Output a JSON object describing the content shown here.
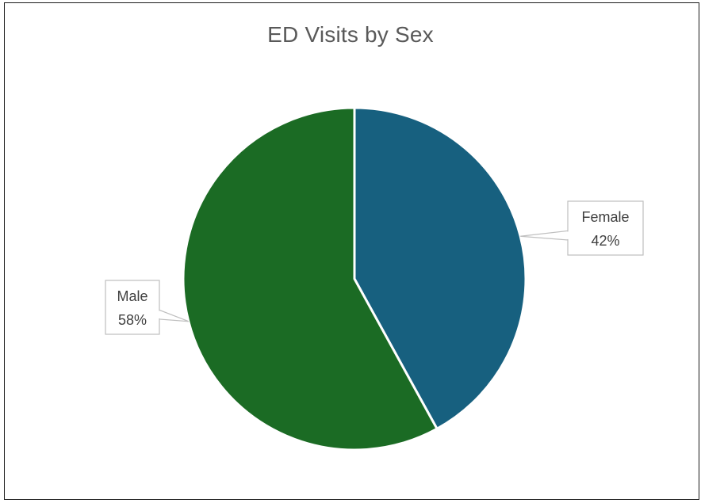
{
  "chart_data": {
    "type": "pie",
    "title": "ED Visits by Sex",
    "slices": [
      {
        "label": "Female",
        "value": 42,
        "value_label": "42%",
        "color": "#17607f"
      },
      {
        "label": "Male",
        "value": 58,
        "value_label": "58%",
        "color": "#1b6b24"
      }
    ],
    "start_angle_deg": 0,
    "direction": "clockwise",
    "legend": "none",
    "data_labels": "callouts"
  }
}
